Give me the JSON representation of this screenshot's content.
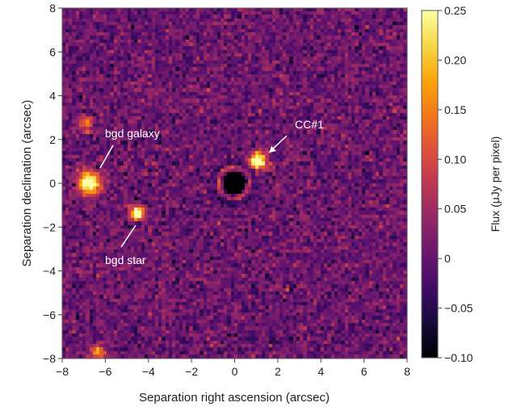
{
  "chart_data": {
    "type": "heatmap",
    "xlabel": "Separation right ascension (arcsec)",
    "ylabel": "Separation declination (arcsec)",
    "xlim": [
      -8,
      8
    ],
    "ylim": [
      -8,
      8
    ],
    "xticks": [
      "−8",
      "−6",
      "−4",
      "−2",
      "0",
      "2",
      "4",
      "6",
      "8"
    ],
    "yticks": [
      "8",
      "6",
      "4",
      "2",
      "0",
      "−2",
      "−4",
      "−6",
      "−8"
    ],
    "xtick_values": [
      -8,
      -6,
      -4,
      -2,
      0,
      2,
      4,
      6,
      8
    ],
    "ytick_values": [
      8,
      6,
      4,
      2,
      0,
      -2,
      -4,
      -6,
      -8
    ],
    "colorbar": {
      "label": "Flux (μJy per pixel)",
      "range": [
        -0.1,
        0.25
      ],
      "colormap": "inferno",
      "ticks": [
        "0.25",
        "0.20",
        "0.15",
        "0.10",
        "0.05",
        "0",
        "−0.05",
        "−0.10"
      ],
      "tick_values": [
        0.25,
        0.2,
        0.15,
        0.1,
        0.05,
        0,
        -0.05,
        -0.1
      ]
    },
    "sources": [
      {
        "name": "bgd galaxy",
        "x": -6.7,
        "y": 0.0,
        "peak": 0.25,
        "width": 0.35
      },
      {
        "name": "bgd star",
        "x": -4.5,
        "y": -1.4,
        "peak": 0.25,
        "width": 0.22
      },
      {
        "name": "CC#1",
        "x": 1.1,
        "y": 1.0,
        "peak": 0.25,
        "width": 0.25
      },
      {
        "name": "faint spot",
        "x": -6.9,
        "y": 2.7,
        "peak": 0.12,
        "width": 0.2
      },
      {
        "name": "faint spot",
        "x": -6.3,
        "y": -7.7,
        "peak": 0.12,
        "width": 0.25
      }
    ],
    "masked_star": {
      "x": 0,
      "y": 0
    },
    "annotations": [
      {
        "text": "bgd galaxy",
        "target": [
          -6.7,
          0.0
        ]
      },
      {
        "text": "bgd star",
        "target": [
          -4.5,
          -1.4
        ]
      },
      {
        "text": "CC#1",
        "target": [
          1.1,
          1.0
        ]
      }
    ]
  }
}
